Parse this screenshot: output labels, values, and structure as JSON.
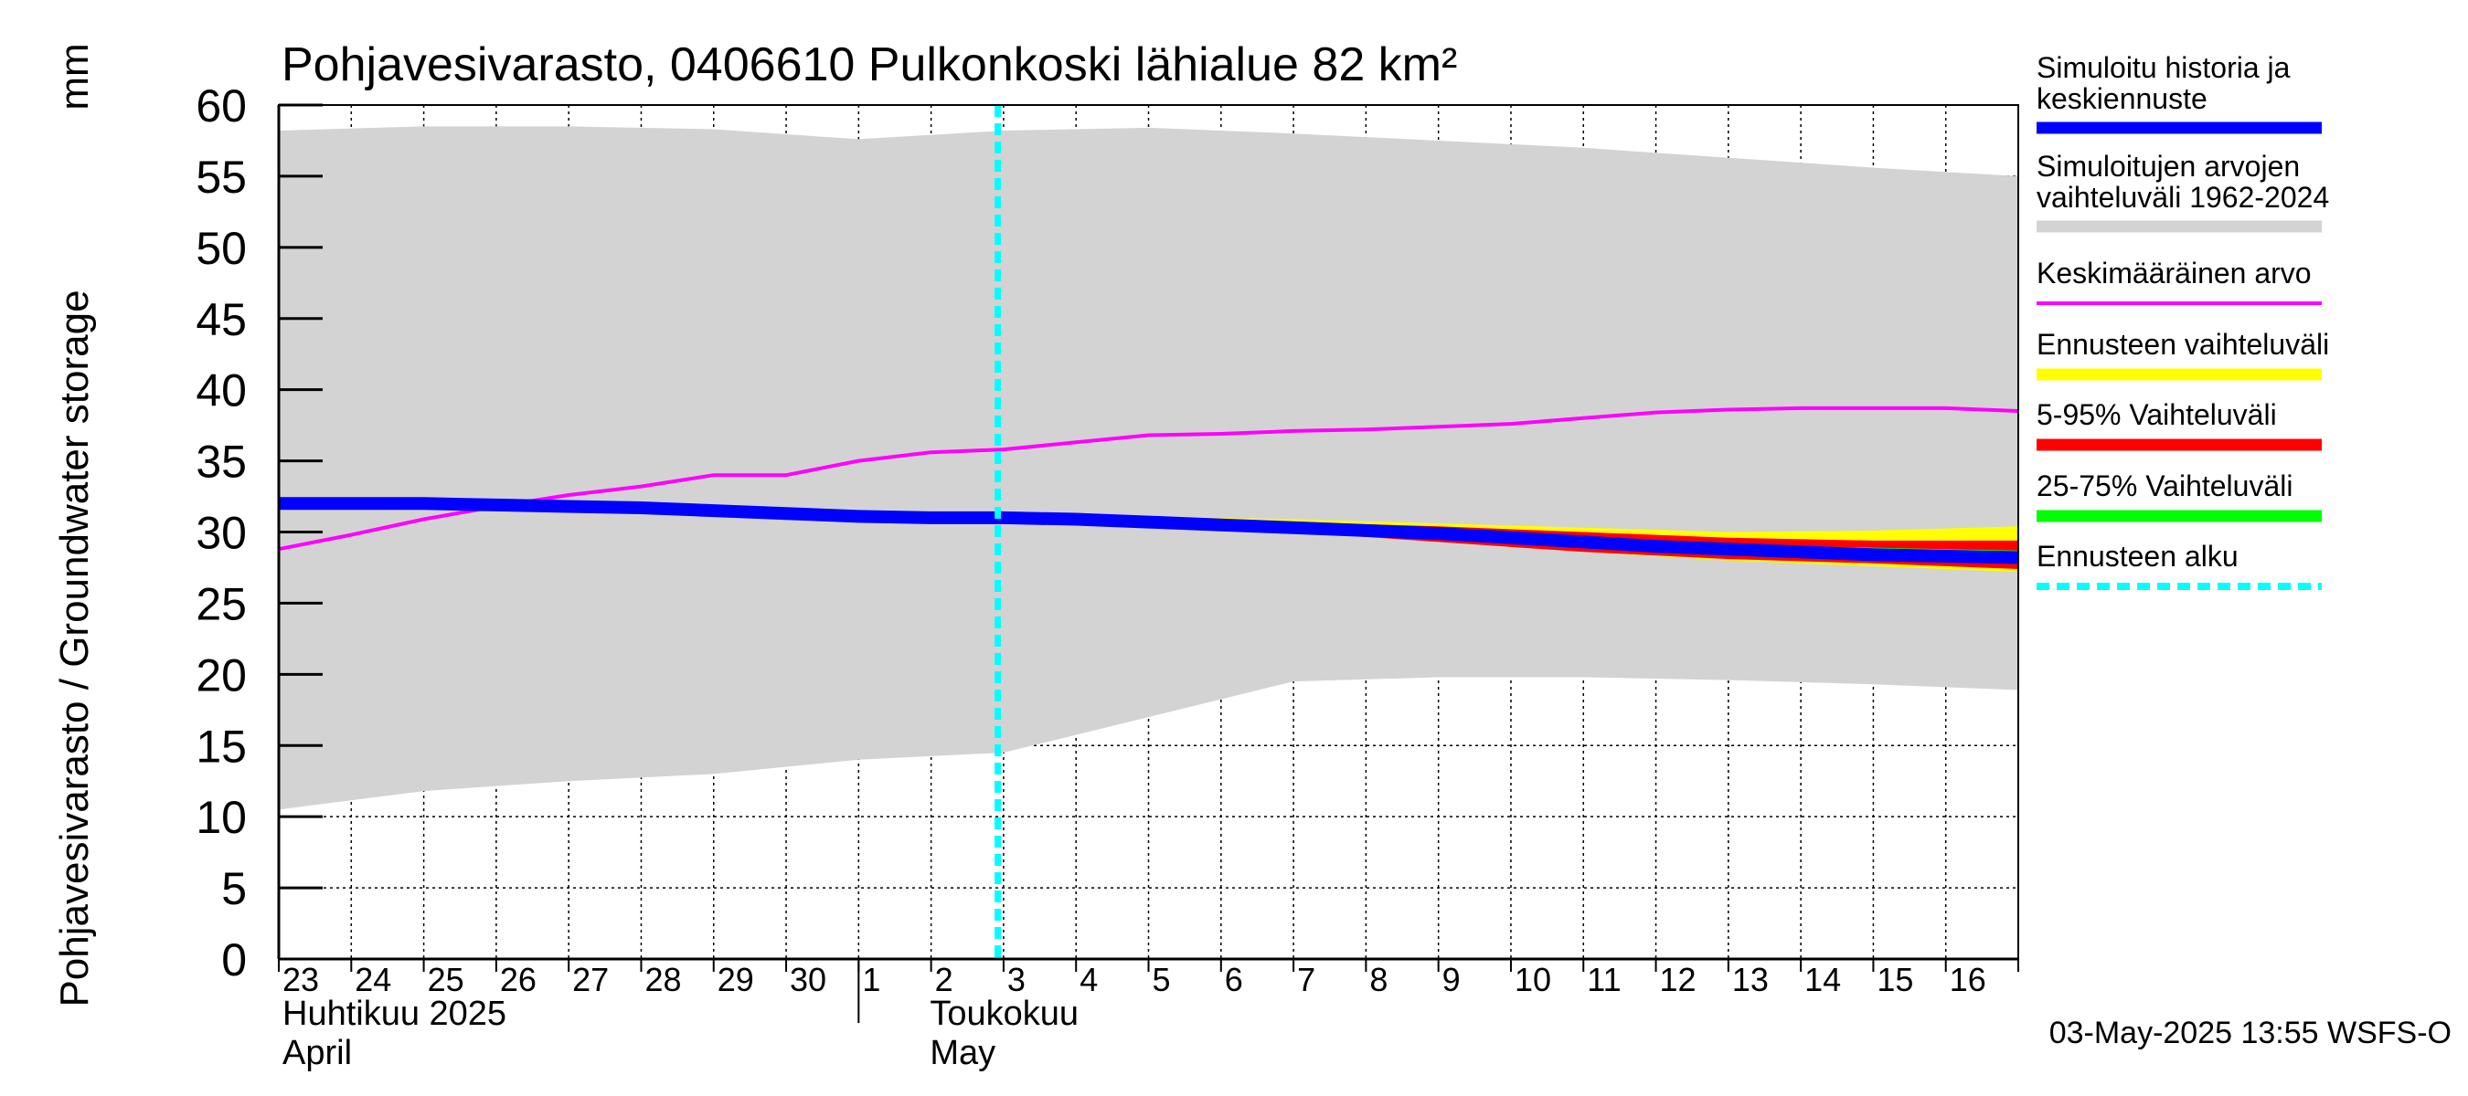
{
  "chart_data": {
    "type": "line",
    "title": "Pohjavesivarasto, 0406610 Pulkonkoski lähialue 82 km²",
    "ylabel": "Pohjavesivarasto / Groundwater storage",
    "yunit": "mm",
    "ylim": [
      0,
      60
    ],
    "yticks": [
      0,
      5,
      10,
      15,
      20,
      25,
      30,
      35,
      40,
      45,
      50,
      55,
      60
    ],
    "grid": true,
    "x_start": "2025-04-23",
    "x_end": "2025-05-17",
    "xtick_labels": [
      "23",
      "24",
      "25",
      "26",
      "27",
      "28",
      "29",
      "30",
      "1",
      "2",
      "3",
      "4",
      "5",
      "6",
      "7",
      "8",
      "9",
      "10",
      "11",
      "12",
      "13",
      "14",
      "15",
      "16"
    ],
    "month_labels": [
      {
        "fi": "Huhtikuu  2025",
        "en": "April"
      },
      {
        "fi": "Toukokuu",
        "en": "May"
      }
    ],
    "forecast_start": "2025-05-03",
    "legend_position": "right",
    "legend": [
      {
        "label": "Simuloitu historia ja keskiennuste",
        "color": "#0000ff",
        "style": "thick"
      },
      {
        "label": "Simuloitujen arvojen vaihteluväli 1962-2024",
        "color": "#d3d3d3",
        "style": "thick"
      },
      {
        "label": "Keskimääräinen arvo",
        "color": "#ff00ff",
        "style": "thin"
      },
      {
        "label": "Ennusteen vaihteluväli",
        "color": "#ffff00",
        "style": "thick"
      },
      {
        "label": "5-95% Vaihteluväli",
        "color": "#ff0000",
        "style": "thick"
      },
      {
        "label": "25-75% Vaihteluväli",
        "color": "#00ff00",
        "style": "thick"
      },
      {
        "label": "Ennusteen alku",
        "color": "#00ffff",
        "style": "dashed"
      }
    ],
    "series": [
      {
        "name": "Simuloitujen arvojen vaihteluväli 1962-2024",
        "kind": "band",
        "color": "#d3d3d3",
        "x": [
          "2025-04-23",
          "2025-04-25",
          "2025-04-27",
          "2025-04-29",
          "2025-05-01",
          "2025-05-03",
          "2025-05-05",
          "2025-05-07",
          "2025-05-09",
          "2025-05-11",
          "2025-05-13",
          "2025-05-15",
          "2025-05-17"
        ],
        "low": [
          10.5,
          11.8,
          12.5,
          13.0,
          14.0,
          14.5,
          17.0,
          19.5,
          19.8,
          19.8,
          19.6,
          19.3,
          18.9
        ],
        "high": [
          58.2,
          58.5,
          58.5,
          58.3,
          57.6,
          58.2,
          58.4,
          58.0,
          57.5,
          57.0,
          56.3,
          55.6,
          55.0
        ]
      },
      {
        "name": "Ennusteen vaihteluväli",
        "kind": "band",
        "color": "#ffff00",
        "x": [
          "2025-05-03",
          "2025-05-05",
          "2025-05-07",
          "2025-05-09",
          "2025-05-11",
          "2025-05-13",
          "2025-05-15",
          "2025-05-17"
        ],
        "low": [
          31.0,
          30.6,
          30.0,
          29.3,
          28.6,
          28.0,
          27.6,
          27.2
        ],
        "high": [
          31.2,
          31.1,
          30.9,
          30.6,
          30.3,
          30.0,
          30.1,
          30.4
        ]
      },
      {
        "name": "5-95% Vaihteluväli",
        "kind": "band",
        "color": "#ff0000",
        "x": [
          "2025-05-03",
          "2025-05-05",
          "2025-05-07",
          "2025-05-09",
          "2025-05-11",
          "2025-05-13",
          "2025-05-15",
          "2025-05-17"
        ],
        "low": [
          31.0,
          30.6,
          30.0,
          29.3,
          28.6,
          28.1,
          27.8,
          27.4
        ],
        "high": [
          31.1,
          31.0,
          30.7,
          30.4,
          30.0,
          29.6,
          29.4,
          29.4
        ]
      },
      {
        "name": "25-75% Vaihteluväli",
        "kind": "band",
        "color": "#00ff00",
        "x": [
          "2025-05-03",
          "2025-05-05",
          "2025-05-07",
          "2025-05-09",
          "2025-05-11",
          "2025-05-13",
          "2025-05-15",
          "2025-05-17"
        ],
        "low": [
          31.0,
          30.7,
          30.2,
          29.6,
          29.0,
          28.5,
          28.2,
          28.0
        ],
        "high": [
          31.1,
          30.8,
          30.4,
          30.0,
          29.5,
          29.1,
          28.9,
          28.7
        ]
      },
      {
        "name": "Keskimääräinen arvo",
        "kind": "line",
        "color": "#ff00ff",
        "x": [
          "2025-04-23",
          "2025-04-24",
          "2025-04-25",
          "2025-04-26",
          "2025-04-27",
          "2025-04-28",
          "2025-04-29",
          "2025-04-30",
          "2025-05-01",
          "2025-05-02",
          "2025-05-03",
          "2025-05-04",
          "2025-05-05",
          "2025-05-06",
          "2025-05-07",
          "2025-05-08",
          "2025-05-09",
          "2025-05-10",
          "2025-05-11",
          "2025-05-12",
          "2025-05-13",
          "2025-05-14",
          "2025-05-15",
          "2025-05-16",
          "2025-05-17"
        ],
        "y": [
          28.8,
          29.8,
          30.9,
          31.8,
          32.6,
          33.2,
          34.0,
          34.0,
          35.0,
          35.6,
          35.8,
          36.3,
          36.8,
          36.9,
          37.1,
          37.2,
          37.4,
          37.6,
          38.0,
          38.4,
          38.6,
          38.7,
          38.7,
          38.7,
          38.5
        ]
      },
      {
        "name": "Simuloitu historia ja keskiennuste",
        "kind": "line",
        "color": "#0000ff",
        "x": [
          "2025-04-23",
          "2025-04-24",
          "2025-04-25",
          "2025-04-26",
          "2025-04-27",
          "2025-04-28",
          "2025-04-29",
          "2025-04-30",
          "2025-05-01",
          "2025-05-02",
          "2025-05-03",
          "2025-05-04",
          "2025-05-05",
          "2025-05-06",
          "2025-05-07",
          "2025-05-08",
          "2025-05-09",
          "2025-05-10",
          "2025-05-11",
          "2025-05-12",
          "2025-05-13",
          "2025-05-14",
          "2025-05-15",
          "2025-05-16",
          "2025-05-17"
        ],
        "y": [
          32.0,
          32.0,
          32.0,
          31.9,
          31.8,
          31.7,
          31.5,
          31.3,
          31.1,
          31.0,
          31.0,
          30.9,
          30.7,
          30.5,
          30.3,
          30.1,
          29.9,
          29.6,
          29.3,
          29.0,
          28.8,
          28.6,
          28.4,
          28.3,
          28.2
        ]
      }
    ]
  },
  "footer": {
    "timestamp": "03-May-2025 13:55 WSFS-O"
  }
}
